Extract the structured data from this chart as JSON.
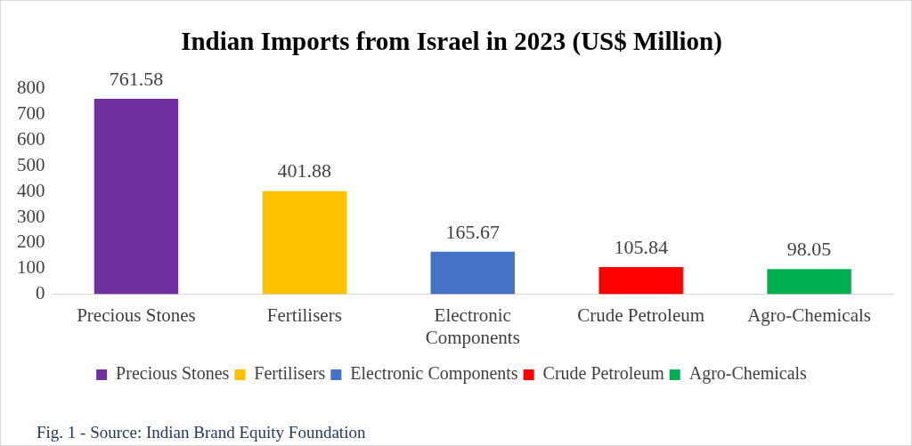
{
  "chart_data": {
    "type": "bar",
    "title": "Indian Imports from Israel in 2023 (US$ Million)",
    "categories": [
      "Precious Stones",
      "Fertilisers",
      "Electronic Components",
      "Crude Petroleum",
      "Agro-Chemicals"
    ],
    "series": [
      {
        "name": "Precious Stones",
        "color": "#7030a0",
        "values": [
          761.58,
          null,
          null,
          null,
          null
        ]
      },
      {
        "name": "Fertilisers",
        "color": "#ffc000",
        "values": [
          null,
          401.88,
          null,
          null,
          null
        ]
      },
      {
        "name": "Electronic Components",
        "color": "#4472c4",
        "values": [
          null,
          null,
          165.67,
          null,
          null
        ]
      },
      {
        "name": "Crude Petroleum",
        "color": "#ff0000",
        "values": [
          null,
          null,
          null,
          105.84,
          null
        ]
      },
      {
        "name": "Agro-Chemicals",
        "color": "#00b050",
        "values": [
          null,
          null,
          null,
          null,
          98.05
        ]
      }
    ],
    "ylim": [
      0,
      800
    ],
    "yticks": [
      0,
      100,
      200,
      300,
      400,
      500,
      600,
      700,
      800
    ],
    "grid": false,
    "legend": "bottom",
    "data_labels": true,
    "annotations": [
      "Fig. 1 - Source: Indian Brand Equity Foundation"
    ]
  }
}
